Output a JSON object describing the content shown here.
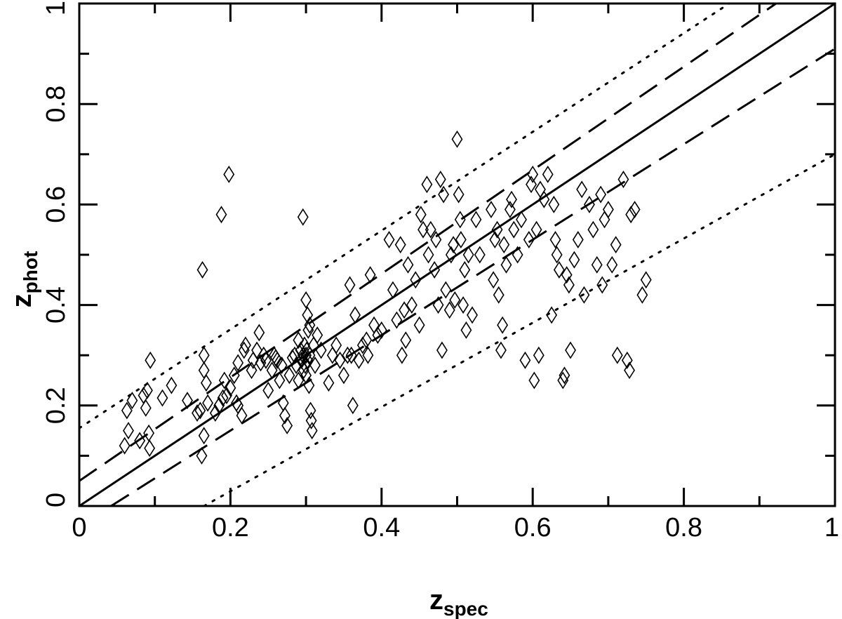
{
  "chart_data": {
    "type": "scatter",
    "xlabel": "z",
    "xlabel_sub": "spec",
    "ylabel": "z",
    "ylabel_sub": "phot",
    "xlim": [
      0,
      1
    ],
    "ylim": [
      0,
      1
    ],
    "x_ticks": [
      {
        "value": 0,
        "label": "0"
      },
      {
        "value": 0.2,
        "label": "0.2"
      },
      {
        "value": 0.4,
        "label": "0.4"
      },
      {
        "value": 0.6,
        "label": "0.6"
      },
      {
        "value": 0.8,
        "label": "0.8"
      },
      {
        "value": 1,
        "label": "1"
      }
    ],
    "y_ticks": [
      {
        "value": 0,
        "label": "0"
      },
      {
        "value": 0.2,
        "label": "0.2"
      },
      {
        "value": 0.4,
        "label": "0.4"
      },
      {
        "value": 0.6,
        "label": "0.6"
      },
      {
        "value": 0.8,
        "label": "0.8"
      },
      {
        "value": 1,
        "label": "1"
      }
    ],
    "minor_tick_step": 0.1,
    "grid": false,
    "marker": "open-diamond",
    "reference_lines": [
      {
        "style": "solid",
        "points": [
          [
            0,
            0
          ],
          [
            1,
            1
          ]
        ]
      },
      {
        "style": "dashed",
        "points": [
          [
            0,
            0.05
          ],
          [
            0.922,
            1
          ]
        ]
      },
      {
        "style": "dashed",
        "points": [
          [
            0.042,
            0
          ],
          [
            1,
            0.91
          ]
        ]
      },
      {
        "style": "dotted",
        "points": [
          [
            0,
            0.155
          ],
          [
            0.86,
            1
          ]
        ]
      },
      {
        "style": "dotted",
        "points": [
          [
            0.165,
            0
          ],
          [
            1,
            0.7
          ]
        ]
      }
    ],
    "points": [
      [
        0.06,
        0.12
      ],
      [
        0.063,
        0.19
      ],
      [
        0.065,
        0.15
      ],
      [
        0.07,
        0.21
      ],
      [
        0.08,
        0.13
      ],
      [
        0.085,
        0.22
      ],
      [
        0.088,
        0.195
      ],
      [
        0.09,
        0.23
      ],
      [
        0.092,
        0.145
      ],
      [
        0.093,
        0.115
      ],
      [
        0.094,
        0.29
      ],
      [
        0.11,
        0.215
      ],
      [
        0.122,
        0.24
      ],
      [
        0.143,
        0.21
      ],
      [
        0.156,
        0.185
      ],
      [
        0.16,
        0.19
      ],
      [
        0.162,
        0.1
      ],
      [
        0.163,
        0.47
      ],
      [
        0.165,
        0.27
      ],
      [
        0.165,
        0.3
      ],
      [
        0.165,
        0.14
      ],
      [
        0.168,
        0.245
      ],
      [
        0.17,
        0.205
      ],
      [
        0.18,
        0.185
      ],
      [
        0.185,
        0.2
      ],
      [
        0.188,
        0.58
      ],
      [
        0.19,
        0.215
      ],
      [
        0.192,
        0.25
      ],
      [
        0.195,
        0.22
      ],
      [
        0.198,
        0.66
      ],
      [
        0.2,
        0.235
      ],
      [
        0.205,
        0.26
      ],
      [
        0.208,
        0.205
      ],
      [
        0.21,
        0.2
      ],
      [
        0.21,
        0.285
      ],
      [
        0.215,
        0.18
      ],
      [
        0.218,
        0.31
      ],
      [
        0.22,
        0.32
      ],
      [
        0.228,
        0.27
      ],
      [
        0.23,
        0.29
      ],
      [
        0.235,
        0.31
      ],
      [
        0.238,
        0.345
      ],
      [
        0.24,
        0.285
      ],
      [
        0.244,
        0.3
      ],
      [
        0.247,
        0.29
      ],
      [
        0.25,
        0.23
      ],
      [
        0.255,
        0.27
      ],
      [
        0.258,
        0.3
      ],
      [
        0.26,
        0.295
      ],
      [
        0.262,
        0.29
      ],
      [
        0.265,
        0.25
      ],
      [
        0.268,
        0.28
      ],
      [
        0.27,
        0.205
      ],
      [
        0.272,
        0.18
      ],
      [
        0.275,
        0.16
      ],
      [
        0.278,
        0.26
      ],
      [
        0.282,
        0.295
      ],
      [
        0.285,
        0.3
      ],
      [
        0.287,
        0.28
      ],
      [
        0.29,
        0.25
      ],
      [
        0.29,
        0.33
      ],
      [
        0.293,
        0.31
      ],
      [
        0.294,
        0.29
      ],
      [
        0.296,
        0.3
      ],
      [
        0.297,
        0.27
      ],
      [
        0.298,
        0.32
      ],
      [
        0.299,
        0.28
      ],
      [
        0.3,
        0.3
      ],
      [
        0.3,
        0.26
      ],
      [
        0.301,
        0.31
      ],
      [
        0.302,
        0.29
      ],
      [
        0.303,
        0.35
      ],
      [
        0.304,
        0.24
      ],
      [
        0.305,
        0.3
      ],
      [
        0.306,
        0.19
      ],
      [
        0.307,
        0.17
      ],
      [
        0.308,
        0.15
      ],
      [
        0.3,
        0.41
      ],
      [
        0.302,
        0.38
      ],
      [
        0.296,
        0.575
      ],
      [
        0.305,
        0.36
      ],
      [
        0.31,
        0.32
      ],
      [
        0.312,
        0.28
      ],
      [
        0.315,
        0.34
      ],
      [
        0.32,
        0.31
      ],
      [
        0.33,
        0.245
      ],
      [
        0.335,
        0.3
      ],
      [
        0.34,
        0.32
      ],
      [
        0.345,
        0.29
      ],
      [
        0.35,
        0.26
      ],
      [
        0.355,
        0.3
      ],
      [
        0.358,
        0.44
      ],
      [
        0.36,
        0.3
      ],
      [
        0.362,
        0.2
      ],
      [
        0.365,
        0.38
      ],
      [
        0.37,
        0.29
      ],
      [
        0.375,
        0.32
      ],
      [
        0.38,
        0.33
      ],
      [
        0.382,
        0.3
      ],
      [
        0.385,
        0.46
      ],
      [
        0.39,
        0.36
      ],
      [
        0.395,
        0.34
      ],
      [
        0.4,
        0.35
      ],
      [
        0.41,
        0.53
      ],
      [
        0.415,
        0.43
      ],
      [
        0.42,
        0.37
      ],
      [
        0.425,
        0.52
      ],
      [
        0.427,
        0.3
      ],
      [
        0.43,
        0.39
      ],
      [
        0.432,
        0.33
      ],
      [
        0.435,
        0.48
      ],
      [
        0.44,
        0.4
      ],
      [
        0.445,
        0.45
      ],
      [
        0.45,
        0.36
      ],
      [
        0.452,
        0.58
      ],
      [
        0.455,
        0.55
      ],
      [
        0.46,
        0.64
      ],
      [
        0.462,
        0.5
      ],
      [
        0.465,
        0.55
      ],
      [
        0.47,
        0.47
      ],
      [
        0.472,
        0.53
      ],
      [
        0.475,
        0.4
      ],
      [
        0.478,
        0.65
      ],
      [
        0.48,
        0.31
      ],
      [
        0.482,
        0.62
      ],
      [
        0.485,
        0.43
      ],
      [
        0.49,
        0.39
      ],
      [
        0.492,
        0.5
      ],
      [
        0.495,
        0.52
      ],
      [
        0.497,
        0.41
      ],
      [
        0.5,
        0.73
      ],
      [
        0.502,
        0.62
      ],
      [
        0.504,
        0.57
      ],
      [
        0.505,
        0.53
      ],
      [
        0.508,
        0.4
      ],
      [
        0.51,
        0.47
      ],
      [
        0.512,
        0.35
      ],
      [
        0.515,
        0.5
      ],
      [
        0.52,
        0.38
      ],
      [
        0.525,
        0.57
      ],
      [
        0.53,
        0.5
      ],
      [
        0.545,
        0.59
      ],
      [
        0.548,
        0.45
      ],
      [
        0.55,
        0.53
      ],
      [
        0.553,
        0.55
      ],
      [
        0.555,
        0.42
      ],
      [
        0.558,
        0.31
      ],
      [
        0.56,
        0.36
      ],
      [
        0.562,
        0.52
      ],
      [
        0.565,
        0.48
      ],
      [
        0.57,
        0.59
      ],
      [
        0.572,
        0.61
      ],
      [
        0.575,
        0.55
      ],
      [
        0.58,
        0.5
      ],
      [
        0.585,
        0.57
      ],
      [
        0.59,
        0.29
      ],
      [
        0.595,
        0.53
      ],
      [
        0.598,
        0.64
      ],
      [
        0.6,
        0.66
      ],
      [
        0.602,
        0.25
      ],
      [
        0.605,
        0.55
      ],
      [
        0.608,
        0.3
      ],
      [
        0.61,
        0.63
      ],
      [
        0.615,
        0.61
      ],
      [
        0.62,
        0.66
      ],
      [
        0.625,
        0.38
      ],
      [
        0.628,
        0.6
      ],
      [
        0.63,
        0.53
      ],
      [
        0.632,
        0.5
      ],
      [
        0.635,
        0.47
      ],
      [
        0.64,
        0.25
      ],
      [
        0.642,
        0.26
      ],
      [
        0.645,
        0.46
      ],
      [
        0.648,
        0.44
      ],
      [
        0.65,
        0.31
      ],
      [
        0.655,
        0.49
      ],
      [
        0.66,
        0.53
      ],
      [
        0.665,
        0.63
      ],
      [
        0.668,
        0.42
      ],
      [
        0.675,
        0.6
      ],
      [
        0.68,
        0.55
      ],
      [
        0.685,
        0.48
      ],
      [
        0.69,
        0.62
      ],
      [
        0.692,
        0.44
      ],
      [
        0.695,
        0.57
      ],
      [
        0.7,
        0.59
      ],
      [
        0.705,
        0.48
      ],
      [
        0.71,
        0.52
      ],
      [
        0.712,
        0.3
      ],
      [
        0.72,
        0.65
      ],
      [
        0.725,
        0.29
      ],
      [
        0.728,
        0.27
      ],
      [
        0.73,
        0.58
      ],
      [
        0.735,
        0.59
      ],
      [
        0.745,
        0.42
      ],
      [
        0.75,
        0.45
      ]
    ]
  }
}
